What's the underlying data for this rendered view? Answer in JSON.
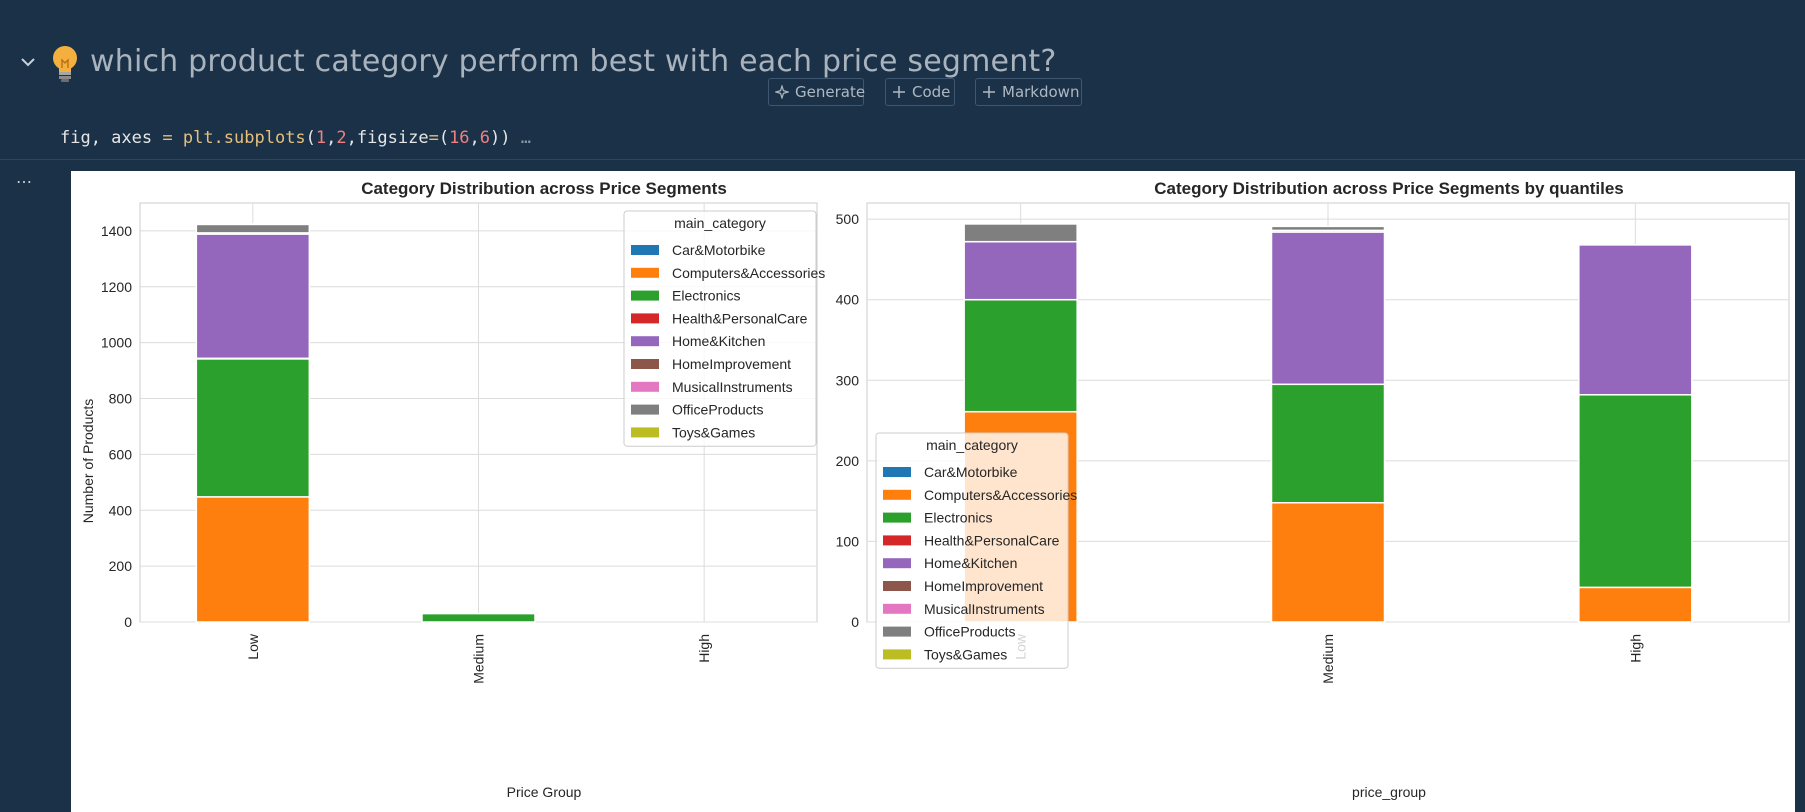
{
  "heading": {
    "text": "which product category perform best with each price segment?"
  },
  "toolbar": {
    "generate_label": "Generate",
    "code_label": "Code",
    "markdown_label": "Markdown"
  },
  "code": {
    "var_part": "fig, axes ",
    "op_eq": "=",
    "fn_part": " plt.subplots",
    "paren_open": "(",
    "arg1": "1",
    "comma1": ",",
    "arg2": "2",
    "comma2": ",figsize",
    "eq2": "=",
    "tuple_open": "(",
    "arg3": "16",
    "comma3": ",",
    "arg4": "6",
    "tuple_close": "))",
    "fold": " …"
  },
  "output": {
    "more_label": "…"
  },
  "colors": {
    "Car&Motorbike": "#1f77b4",
    "Computers&Accessories": "#ff7f0e",
    "Electronics": "#2ca02c",
    "Health&PersonalCare": "#d62728",
    "Home&Kitchen": "#9467bd",
    "HomeImprovement": "#8c564b",
    "MusicalInstruments": "#e377c2",
    "OfficeProducts": "#7f7f7f",
    "Toys&Games": "#bcbd22"
  },
  "chart_data": [
    {
      "type": "bar",
      "stacked": true,
      "title": "Category Distribution across Price Segments",
      "xlabel": "Price Group",
      "ylabel": "Number of Products",
      "categories": [
        "Low",
        "Medium",
        "High"
      ],
      "ylim": [
        0,
        1500
      ],
      "yticks": [
        0,
        200,
        400,
        600,
        800,
        1000,
        1200,
        1400
      ],
      "grid": true,
      "legend": {
        "title": "main_category",
        "placement": "top-right"
      },
      "series": [
        {
          "name": "Car&Motorbike",
          "values": [
            0,
            0,
            0
          ]
        },
        {
          "name": "Computers&Accessories",
          "values": [
            448,
            0,
            0
          ]
        },
        {
          "name": "Electronics",
          "values": [
            494,
            30,
            0
          ]
        },
        {
          "name": "Health&PersonalCare",
          "values": [
            2,
            0,
            0
          ]
        },
        {
          "name": "Home&Kitchen",
          "values": [
            445,
            0,
            0
          ]
        },
        {
          "name": "HomeImprovement",
          "values": [
            2,
            0,
            0
          ]
        },
        {
          "name": "MusicalInstruments",
          "values": [
            2,
            0,
            0
          ]
        },
        {
          "name": "OfficeProducts",
          "values": [
            31,
            0,
            0
          ]
        },
        {
          "name": "Toys&Games",
          "values": [
            1,
            0,
            0
          ]
        }
      ]
    },
    {
      "type": "bar",
      "stacked": true,
      "title": "Category Distribution across Price Segments by quantiles",
      "xlabel": "price_group",
      "ylabel": "",
      "categories": [
        "Low",
        "Medium",
        "High"
      ],
      "ylim": [
        0,
        520
      ],
      "yticks": [
        0,
        100,
        200,
        300,
        400,
        500
      ],
      "grid": true,
      "legend": {
        "title": "main_category",
        "placement": "lower-left"
      },
      "series": [
        {
          "name": "Car&Motorbike",
          "values": [
            0,
            0,
            0
          ]
        },
        {
          "name": "Computers&Accessories",
          "values": [
            261,
            148,
            43
          ]
        },
        {
          "name": "Electronics",
          "values": [
            139,
            147,
            239
          ]
        },
        {
          "name": "Health&PersonalCare",
          "values": [
            0,
            0,
            0
          ]
        },
        {
          "name": "Home&Kitchen",
          "values": [
            72,
            189,
            186
          ]
        },
        {
          "name": "HomeImprovement",
          "values": [
            0,
            0,
            0
          ]
        },
        {
          "name": "MusicalInstruments",
          "values": [
            0,
            2,
            0
          ]
        },
        {
          "name": "OfficeProducts",
          "values": [
            22,
            5,
            0
          ]
        },
        {
          "name": "Toys&Games",
          "values": [
            0,
            0,
            0
          ]
        }
      ]
    }
  ]
}
